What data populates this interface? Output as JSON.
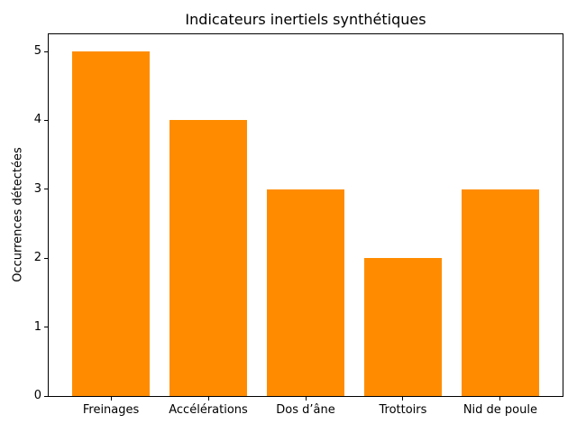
{
  "chart_data": {
    "type": "bar",
    "title": "Indicateurs inertiels synthétiques",
    "ylabel": "Occurrences détectées",
    "xlabel": "",
    "categories": [
      "Freinages",
      "Accélérations",
      "Dos d’âne",
      "Trottoirs",
      "Nid de poule"
    ],
    "values": [
      5,
      4,
      3,
      2,
      3
    ],
    "yticks": [
      0,
      1,
      2,
      3,
      4,
      5
    ],
    "ylim": [
      0,
      5.25
    ],
    "bar_width_fraction": 0.8,
    "grid": false,
    "legend_position": "none",
    "colors": {
      "bar": "#ff8c00",
      "text": "#000000",
      "spine": "#000000",
      "background": "#ffffff"
    }
  }
}
